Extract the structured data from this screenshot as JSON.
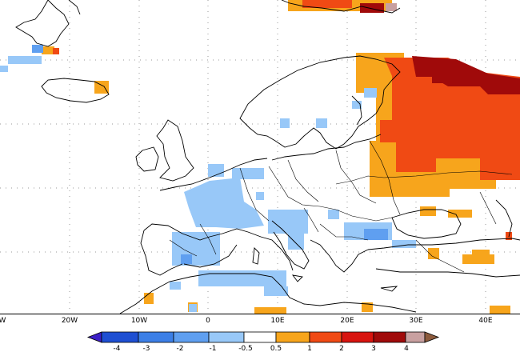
{
  "map": {
    "type": "temperature-anomaly-map",
    "region": "Europe",
    "longitude_labels": [
      "W",
      "20W",
      "10W",
      "0",
      "10E",
      "20E",
      "30E",
      "40E"
    ]
  },
  "legend": {
    "levels": [
      "-4",
      "-3",
      "-2",
      "-1",
      "-0.5",
      "0.5",
      "1",
      "2",
      "3",
      "4"
    ],
    "colors": [
      "#3c1fc6",
      "#1e4fd2",
      "#3c7fe6",
      "#5f9ff0",
      "#98c8f8",
      "#ffffff",
      "#f7a51c",
      "#f04a14",
      "#d8140f",
      "#a00a0a",
      "#c8a0a0",
      "#8c5a3c"
    ]
  }
}
